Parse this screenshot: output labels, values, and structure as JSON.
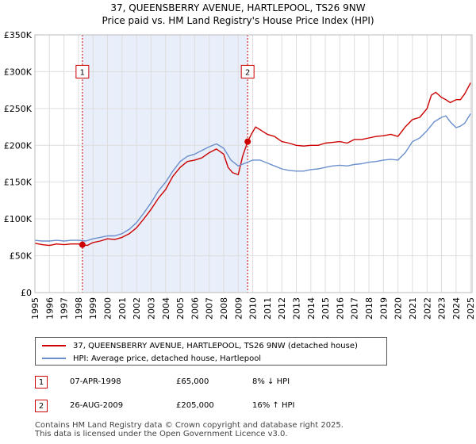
{
  "title_line1": "37, QUEENSBERRY AVENUE, HARTLEPOOL, TS26 9NW",
  "title_line2": "Price paid vs. HM Land Registry's House Price Index (HPI)",
  "colors": {
    "property": "#cc0000",
    "hpi": "#6a8fcc",
    "shade": "#e8eefa",
    "grid": "#dddddd",
    "marker_border": "#cc0000"
  },
  "legend": {
    "property_label": "37, QUEENSBERRY AVENUE, HARTLEPOOL, TS26 9NW (detached house)",
    "hpi_label": "HPI: Average price, detached house, Hartlepool"
  },
  "transactions": [
    {
      "num": "1",
      "date": "07-APR-1998",
      "price": "£65,000",
      "hpi": "8% ↓ HPI"
    },
    {
      "num": "2",
      "date": "26-AUG-2009",
      "price": "£205,000",
      "hpi": "16% ↑ HPI"
    }
  ],
  "footer_line1": "Contains HM Land Registry data © Crown copyright and database right 2025.",
  "footer_line2": "This data is licensed under the Open Government Licence v3.0.",
  "chart_data": {
    "type": "line",
    "title": "37, QUEENSBERRY AVENUE, HARTLEPOOL, TS26 9NW — Price paid vs. HM Land Registry's House Price Index (HPI)",
    "xlabel": "",
    "ylabel": "",
    "xlim": [
      1995,
      2025.1
    ],
    "ylim": [
      0,
      350000
    ],
    "y_ticks": [
      {
        "value": 0,
        "label": "£0"
      },
      {
        "value": 50000,
        "label": "£50K"
      },
      {
        "value": 100000,
        "label": "£100K"
      },
      {
        "value": 150000,
        "label": "£150K"
      },
      {
        "value": 200000,
        "label": "£200K"
      },
      {
        "value": 250000,
        "label": "£250K"
      },
      {
        "value": 300000,
        "label": "£300K"
      },
      {
        "value": 350000,
        "label": "£350K"
      }
    ],
    "x_ticks": [
      "1995",
      "1996",
      "1997",
      "1998",
      "1999",
      "2000",
      "2001",
      "2002",
      "2003",
      "2004",
      "2005",
      "2006",
      "2007",
      "2008",
      "2009",
      "2010",
      "2011",
      "2012",
      "2013",
      "2014",
      "2015",
      "2016",
      "2017",
      "2018",
      "2019",
      "2020",
      "2021",
      "2022",
      "2023",
      "2024",
      "2025"
    ],
    "shaded_range": [
      1998.27,
      2009.65
    ],
    "markers": [
      {
        "label": "1",
        "x": 1998.27,
        "y": 65000
      },
      {
        "label": "2",
        "x": 2009.65,
        "y": 205000
      }
    ],
    "series": [
      {
        "name": "37, QUEENSBERRY AVENUE, HARTLEPOOL, TS26 9NW (detached house)",
        "x": [
          1995,
          1995.5,
          1996,
          1996.5,
          1997,
          1997.5,
          1998,
          1998.27,
          1998.6,
          1999,
          1999.5,
          2000,
          2000.5,
          2001,
          2001.5,
          2002,
          2002.5,
          2003,
          2003.5,
          2004,
          2004.5,
          2005,
          2005.5,
          2006,
          2006.5,
          2007,
          2007.5,
          2008,
          2008.3,
          2008.6,
          2009,
          2009.3,
          2009.65,
          2009.9,
          2010.2,
          2010.6,
          2011,
          2011.5,
          2012,
          2012.5,
          2013,
          2013.5,
          2014,
          2014.5,
          2015,
          2015.5,
          2016,
          2016.5,
          2017,
          2017.5,
          2018,
          2018.5,
          2019,
          2019.5,
          2020,
          2020.5,
          2021,
          2021.5,
          2022,
          2022.3,
          2022.6,
          2023,
          2023.3,
          2023.6,
          2024,
          2024.3,
          2024.6,
          2025
        ],
        "y": [
          67000,
          65000,
          64000,
          66000,
          65000,
          66000,
          66000,
          65000,
          64000,
          68000,
          70000,
          73000,
          72000,
          75000,
          80000,
          88000,
          100000,
          113000,
          128000,
          140000,
          158000,
          170000,
          178000,
          180000,
          183000,
          190000,
          195000,
          188000,
          170000,
          163000,
          160000,
          185000,
          205000,
          215000,
          225000,
          220000,
          215000,
          212000,
          205000,
          203000,
          200000,
          199000,
          200000,
          200000,
          203000,
          204000,
          205000,
          203000,
          208000,
          208000,
          210000,
          212000,
          213000,
          215000,
          212000,
          225000,
          235000,
          238000,
          250000,
          268000,
          272000,
          265000,
          262000,
          258000,
          262000,
          262000,
          270000,
          285000
        ]
      },
      {
        "name": "HPI: Average price, detached house, Hartlepool",
        "x": [
          1995,
          1995.5,
          1996,
          1996.5,
          1997,
          1997.5,
          1998,
          1998.5,
          1999,
          1999.5,
          2000,
          2000.5,
          2001,
          2001.5,
          2002,
          2002.5,
          2003,
          2003.5,
          2004,
          2004.5,
          2005,
          2005.5,
          2006,
          2006.5,
          2007,
          2007.5,
          2008,
          2008.5,
          2009,
          2009.5,
          2010,
          2010.5,
          2011,
          2011.5,
          2012,
          2012.5,
          2013,
          2013.5,
          2014,
          2014.5,
          2015,
          2015.5,
          2016,
          2016.5,
          2017,
          2017.5,
          2018,
          2018.5,
          2019,
          2019.5,
          2020,
          2020.5,
          2021,
          2021.5,
          2022,
          2022.5,
          2023,
          2023.3,
          2023.6,
          2024,
          2024.3,
          2024.6,
          2025
        ],
        "y": [
          71000,
          70000,
          70000,
          71000,
          70000,
          71000,
          71000,
          70000,
          73000,
          75000,
          77000,
          77000,
          80000,
          86000,
          95000,
          108000,
          122000,
          138000,
          150000,
          165000,
          178000,
          185000,
          188000,
          193000,
          198000,
          202000,
          196000,
          180000,
          172000,
          176000,
          180000,
          180000,
          176000,
          172000,
          168000,
          166000,
          165000,
          165000,
          167000,
          168000,
          170000,
          172000,
          173000,
          172000,
          174000,
          175000,
          177000,
          178000,
          180000,
          181000,
          180000,
          190000,
          205000,
          210000,
          220000,
          232000,
          238000,
          240000,
          232000,
          224000,
          226000,
          230000,
          243000
        ]
      }
    ]
  }
}
